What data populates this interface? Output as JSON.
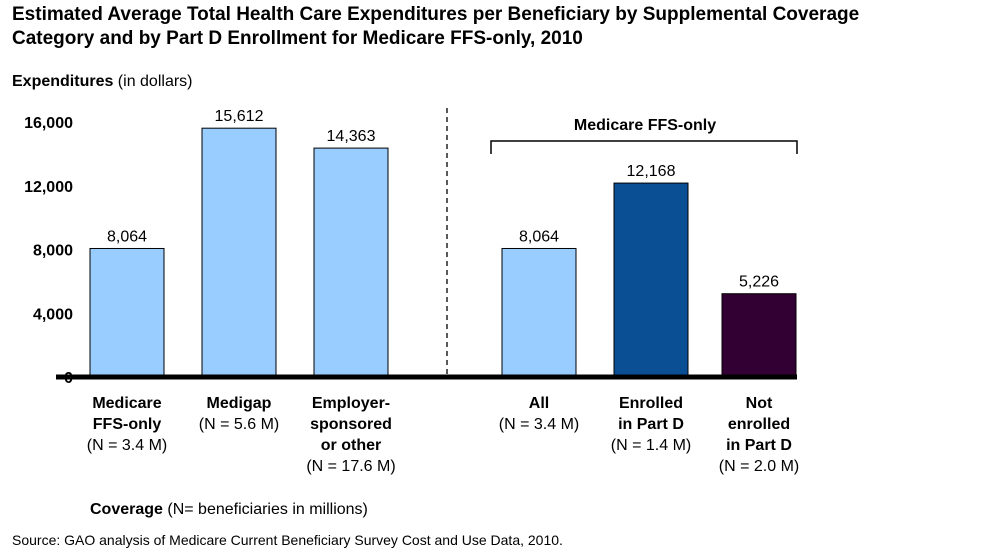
{
  "title_lines": [
    "Estimated Average Total Health Care Expenditures per Beneficiary by Supplemental Coverage",
    "Category and by Part D Enrollment for Medicare FFS-only, 2010"
  ],
  "y_axis_label": {
    "bold": "Expenditures",
    "normal": " (in dollars)"
  },
  "x_axis_label": {
    "bold": "Coverage",
    "normal": " (N= beneficiaries in millions)"
  },
  "group_label": "Medicare FFS-only",
  "source": "Source: GAO analysis of Medicare Current Beneficiary Survey Cost and Use Data, 2010.",
  "colors": {
    "light_blue": "#99ccff",
    "dark_blue": "#0a4f94",
    "dark_purple": "#330033",
    "axis": "#000000"
  },
  "chart_data": {
    "type": "bar",
    "ylim": [
      0,
      16000
    ],
    "y_ticks": [
      0,
      4000,
      8000,
      12000,
      16000
    ],
    "y_tick_labels": [
      "0",
      "4,000",
      "8,000",
      "12,000",
      "16,000"
    ],
    "bars": [
      {
        "value": 8064,
        "label": "8,064",
        "color": "#99ccff",
        "category": [
          {
            "text": "Medicare",
            "bold": true
          },
          {
            "text": "FFS-only",
            "bold": true
          },
          {
            "text": "(N = 3.4 M)",
            "bold": false
          }
        ]
      },
      {
        "value": 15612,
        "label": "15,612",
        "color": "#99ccff",
        "category": [
          {
            "text": "Medigap",
            "bold": true
          },
          {
            "text": "(N = 5.6 M)",
            "bold": false
          }
        ]
      },
      {
        "value": 14363,
        "label": "14,363",
        "color": "#99ccff",
        "category": [
          {
            "text": "Employer-",
            "bold": true
          },
          {
            "text": "sponsored",
            "bold": true
          },
          {
            "text": "or other",
            "bold": true
          },
          {
            "text": "(N = 17.6 M)",
            "bold": false
          }
        ]
      },
      {
        "value": 8064,
        "label": "8,064",
        "color": "#99ccff",
        "category": [
          {
            "text": "All",
            "bold": true
          },
          {
            "text": "(N = 3.4 M)",
            "bold": false
          }
        ]
      },
      {
        "value": 12168,
        "label": "12,168",
        "color": "#0a4f94",
        "category": [
          {
            "text": "Enrolled",
            "bold": true
          },
          {
            "text": "in Part D",
            "bold": true
          },
          {
            "text": "(N = 1.4 M)",
            "bold": false
          }
        ]
      },
      {
        "value": 5226,
        "label": "5,226",
        "color": "#330033",
        "category": [
          {
            "text": "Not",
            "bold": true
          },
          {
            "text": "enrolled",
            "bold": true
          },
          {
            "text": "in Part D",
            "bold": true
          },
          {
            "text": "(N = 2.0 M)",
            "bold": false
          }
        ]
      }
    ]
  }
}
